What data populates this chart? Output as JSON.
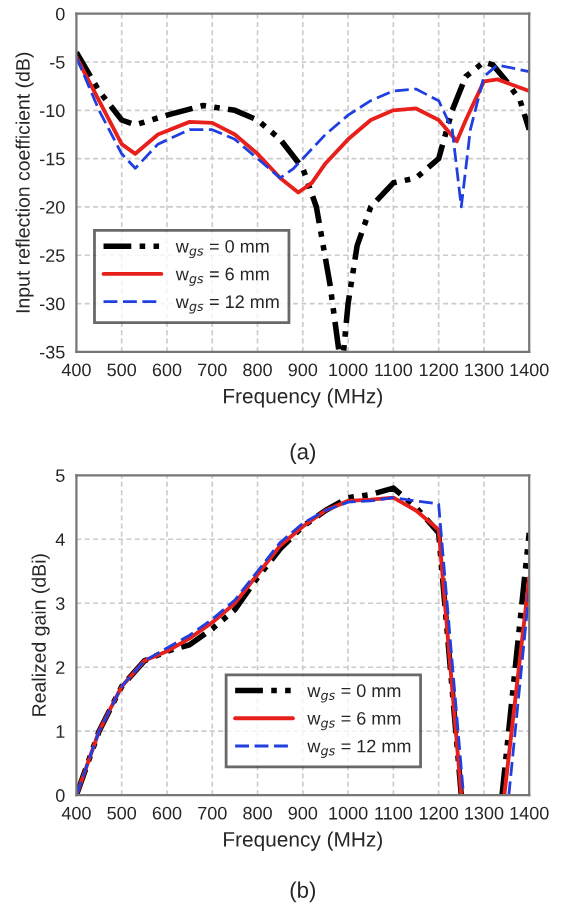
{
  "chart_data": [
    {
      "type": "line",
      "xlabel": "Frequency (MHz)",
      "ylabel": "Input reflection coefficient (dB)",
      "annotations": [
        "(a)"
      ],
      "xlim": [
        400,
        1400
      ],
      "xticks": [
        400,
        500,
        600,
        700,
        800,
        900,
        1000,
        1100,
        1200,
        1300,
        1400
      ],
      "ylim": [
        -35,
        0
      ],
      "yticks": [
        -35,
        -30,
        -25,
        -20,
        -15,
        -10,
        -5,
        0
      ],
      "grid": true,
      "legend": "bottom left",
      "series": [
        {
          "name": "w$_{gs}$ = 0 mm",
          "color": "#000000",
          "line_style": "dashdotdot",
          "x": [
            400,
            450,
            500,
            530,
            600,
            680,
            750,
            800,
            850,
            900,
            930,
            960,
            980,
            990,
            1000,
            1020,
            1050,
            1100,
            1150,
            1200,
            1230,
            1260,
            1300,
            1320,
            1350,
            1380,
            1400
          ],
          "values": [
            -4,
            -8,
            -11,
            -11.5,
            -10.5,
            -9.5,
            -10,
            -11,
            -13,
            -16,
            -20,
            -28,
            -35,
            -35,
            -30,
            -24,
            -20,
            -17.5,
            -17,
            -15,
            -10,
            -6.5,
            -5,
            -5.3,
            -7,
            -9,
            -12
          ]
        },
        {
          "name": "w$_{gs}$ = 6 mm",
          "color": "#e8201c",
          "line_style": "solid",
          "x": [
            400,
            450,
            500,
            530,
            580,
            650,
            700,
            750,
            800,
            850,
            890,
            920,
            950,
            1000,
            1050,
            1100,
            1150,
            1200,
            1240,
            1260,
            1300,
            1330,
            1400
          ],
          "values": [
            -4.5,
            -9,
            -13.5,
            -14.5,
            -12.5,
            -11.2,
            -11.3,
            -12.5,
            -14.5,
            -17,
            -18.5,
            -17.5,
            -15.5,
            -13,
            -11,
            -10,
            -9.8,
            -11,
            -13.2,
            -11,
            -7,
            -6.8,
            -8
          ]
        },
        {
          "name": "w$_{gs}$ = 12 mm",
          "color": "#1f3fe0",
          "line_style": "dashed",
          "x": [
            400,
            450,
            500,
            530,
            580,
            650,
            700,
            750,
            800,
            850,
            880,
            900,
            950,
            1000,
            1050,
            1100,
            1150,
            1200,
            1230,
            1250,
            1270,
            1300,
            1330,
            1400
          ],
          "values": [
            -4.5,
            -10,
            -14.5,
            -16,
            -13.5,
            -12,
            -12,
            -13,
            -15,
            -17,
            -16,
            -15,
            -12.5,
            -10.5,
            -9,
            -8,
            -7.8,
            -9,
            -12,
            -20,
            -12,
            -6.5,
            -5.3,
            -6
          ]
        }
      ]
    },
    {
      "type": "line",
      "xlabel": "Frequency (MHz)",
      "ylabel": "Realized gain (dBi)",
      "annotations": [
        "(b)"
      ],
      "xlim": [
        400,
        1400
      ],
      "xticks": [
        400,
        500,
        600,
        700,
        800,
        900,
        1000,
        1100,
        1200,
        1300,
        1400
      ],
      "ylim": [
        0,
        5
      ],
      "yticks": [
        0,
        1,
        2,
        3,
        4,
        5
      ],
      "grid": true,
      "legend": "bottom right",
      "series": [
        {
          "name": "w$_{gs}$ = 0 mm",
          "color": "#000000",
          "line_style": "dashdotdot",
          "x": [
            400,
            450,
            500,
            550,
            600,
            650,
            700,
            750,
            800,
            850,
            900,
            950,
            1000,
            1050,
            1100,
            1150,
            1200,
            1250,
            1300,
            1340,
            1400
          ],
          "values": [
            0,
            1,
            1.7,
            2.1,
            2.25,
            2.35,
            2.6,
            2.9,
            3.4,
            3.85,
            4.2,
            4.45,
            4.65,
            4.7,
            4.8,
            4.5,
            4.1,
            0,
            null,
            0,
            4.1
          ]
        },
        {
          "name": "w$_{gs}$ = 6 mm",
          "color": "#e8201c",
          "line_style": "solid",
          "x": [
            400,
            450,
            500,
            550,
            600,
            650,
            700,
            750,
            800,
            850,
            900,
            950,
            1000,
            1050,
            1100,
            1150,
            1200,
            1250,
            1300,
            1345,
            1400
          ],
          "values": [
            0,
            1,
            1.7,
            2.1,
            2.25,
            2.45,
            2.7,
            3.0,
            3.45,
            3.9,
            4.2,
            4.45,
            4.6,
            4.62,
            4.65,
            4.45,
            4.15,
            0,
            null,
            0,
            3.4
          ]
        },
        {
          "name": "w$_{gs}$ = 12 mm",
          "color": "#1f3fe0",
          "line_style": "dashed",
          "x": [
            400,
            450,
            500,
            550,
            600,
            650,
            700,
            750,
            800,
            850,
            900,
            950,
            1000,
            1050,
            1100,
            1150,
            1200,
            1255,
            1300,
            1355,
            1400
          ],
          "values": [
            0,
            1,
            1.7,
            2.1,
            2.3,
            2.5,
            2.75,
            3.05,
            3.5,
            3.95,
            4.25,
            4.45,
            4.58,
            4.6,
            4.65,
            4.6,
            4.55,
            0,
            null,
            0,
            3.2
          ]
        }
      ]
    }
  ]
}
